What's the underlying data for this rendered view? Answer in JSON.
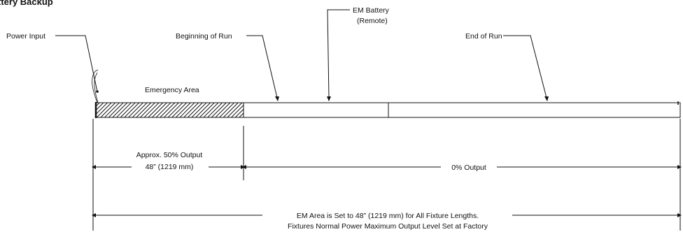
{
  "title": "ttery Backup",
  "labels": {
    "power_input": "Power Input",
    "beginning_of_run": "Beginning of Run",
    "em_battery_line1": "EM Battery",
    "em_battery_line2": "(Remote)",
    "end_of_run": "End of Run",
    "emergency_area": "Emergency Area"
  },
  "dimensions": {
    "em_output_line1": "Approx. 50% Output",
    "em_output_line2": "48” (1219 mm)",
    "normal_output": "0% Output",
    "total_line1": "EM Area is Set to 48” (1219 mm) for All Fixture Lengths.",
    "total_line2": "Fixtures Normal Power Maximum Output Level Set at Factory"
  },
  "colors": {
    "line": "#111111",
    "hatch": "#111111",
    "background": "#ffffff"
  }
}
